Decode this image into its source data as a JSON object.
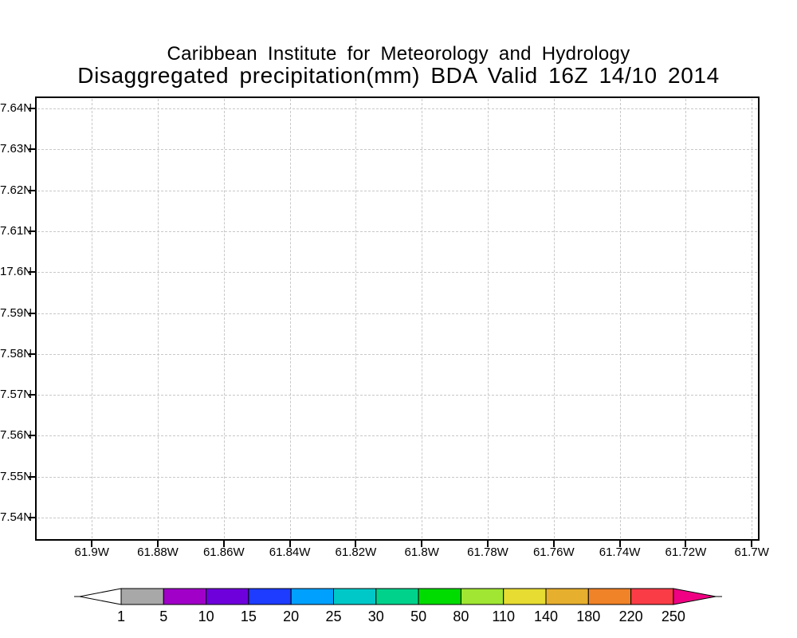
{
  "header": {
    "institute_line": "Caribbean Institute for Meteorology and Hydrology",
    "title_line": "Disaggregated precipitation(mm) BDA Valid 16Z 14/10 2014"
  },
  "chart_data": {
    "type": "heatmap",
    "title": "Caribbean Institute for Meteorology and Hydrology",
    "subtitle": "Disaggregated precipitation(mm) BDA Valid 16Z 14/10 2014",
    "units": "mm",
    "valid_label": "Valid 16Z 14/10 2014",
    "region_code": "BDA",
    "grid": "dashed",
    "values": [],
    "x_axis": {
      "tick_labels": [
        "61.9W",
        "61.88W",
        "61.86W",
        "61.84W",
        "61.82W",
        "61.8W",
        "61.78W",
        "61.76W",
        "61.74W",
        "61.72W",
        "61.7W"
      ]
    },
    "y_axis": {
      "tick_labels": [
        "7.64N",
        "7.63N",
        "7.62N",
        "7.61N",
        "17.6N",
        "7.59N",
        "7.58N",
        "7.57N",
        "7.56N",
        "7.55N",
        "7.54N"
      ]
    },
    "colorbar": {
      "position": "bottom",
      "levels": [
        1,
        5,
        10,
        15,
        20,
        25,
        30,
        50,
        80,
        110,
        140,
        180,
        220,
        250
      ],
      "segment_colors": [
        "#a8a8a8",
        "#a000c8",
        "#6e00dc",
        "#1e3cff",
        "#00a0ff",
        "#00c8c8",
        "#00d28c",
        "#00dc00",
        "#a0e632",
        "#e6dc32",
        "#e6af2d",
        "#f08228",
        "#fa3c46"
      ],
      "below_min_color": "#ffffff",
      "above_max_color": "#f00082"
    }
  },
  "colors": {
    "frame": "#000000",
    "grid": "#c8c8c8",
    "text": "#000000",
    "background": "#ffffff"
  }
}
